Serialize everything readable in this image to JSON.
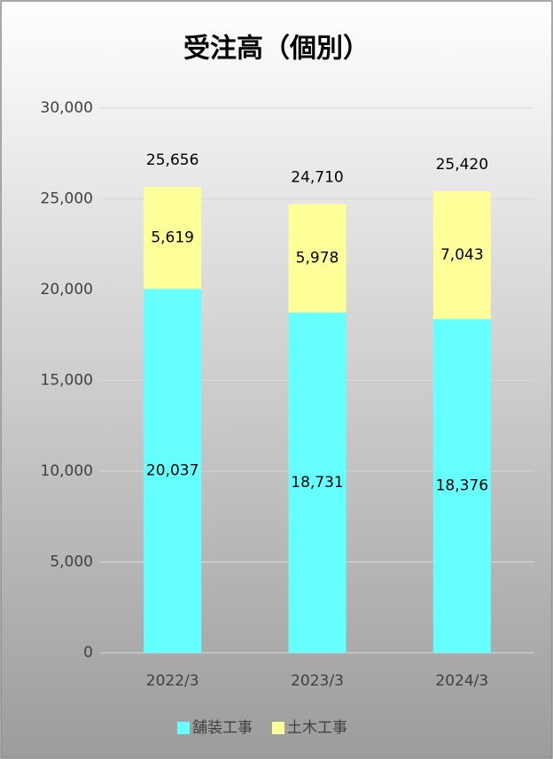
{
  "chart_data": {
    "type": "stacked_bar",
    "title": "受注高（個別）",
    "categories": [
      "2022/3",
      "2023/3",
      "2024/3"
    ],
    "series": [
      {
        "name": "舗装工事",
        "color": "#66ffff",
        "values": [
          20037,
          18731,
          18376
        ],
        "value_labels": [
          "20,037",
          "18,731",
          "18,376"
        ]
      },
      {
        "name": "土木工事",
        "color": "#ffff99",
        "values": [
          5619,
          5978,
          7043
        ],
        "value_labels": [
          "5,619",
          "5,978",
          "7,043"
        ]
      }
    ],
    "totals": {
      "values": [
        25656,
        24710,
        25420
      ],
      "value_labels": [
        "25,656",
        "24,710",
        "25,420"
      ]
    },
    "ylim": [
      0,
      30000
    ],
    "yticks": [
      0,
      {
        "value": 5000,
        "label": "5,000"
      },
      {
        "value": 10000,
        "label": "10,000"
      },
      {
        "value": 15000,
        "label": "15,000"
      },
      {
        "value": 20000,
        "label": "20,000"
      },
      {
        "value": 25000,
        "label": "25,000"
      },
      {
        "value": 30000,
        "label": "30,000"
      }
    ],
    "grid": true,
    "legend": "bottom"
  }
}
